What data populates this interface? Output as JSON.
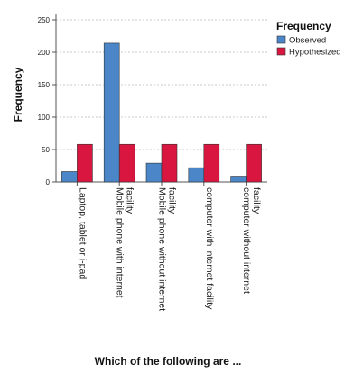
{
  "chart_data": {
    "type": "bar",
    "ylabel": "Frequency",
    "xlabel": "Which of the following are ...",
    "ylim": [
      0,
      250
    ],
    "yticks": [
      0,
      50,
      100,
      150,
      200,
      250
    ],
    "grid": "horizontal dashed",
    "legend": {
      "title": "Frequency",
      "placement": "top-right"
    },
    "categories": [
      [
        "Laptop, tablet or i-pad"
      ],
      [
        "Mobile phone with internet",
        "facility"
      ],
      [
        "Mobile phone without internet",
        "facility"
      ],
      [
        "computer with internet facility"
      ],
      [
        "computer without internet",
        "facility"
      ]
    ],
    "series": [
      {
        "name": "Observed",
        "color": "#4a86c8",
        "values": [
          16,
          214,
          29,
          22,
          9
        ]
      },
      {
        "name": "Hypothesized",
        "color": "#d9163f",
        "values": [
          58,
          58,
          58,
          58,
          58
        ]
      }
    ]
  }
}
